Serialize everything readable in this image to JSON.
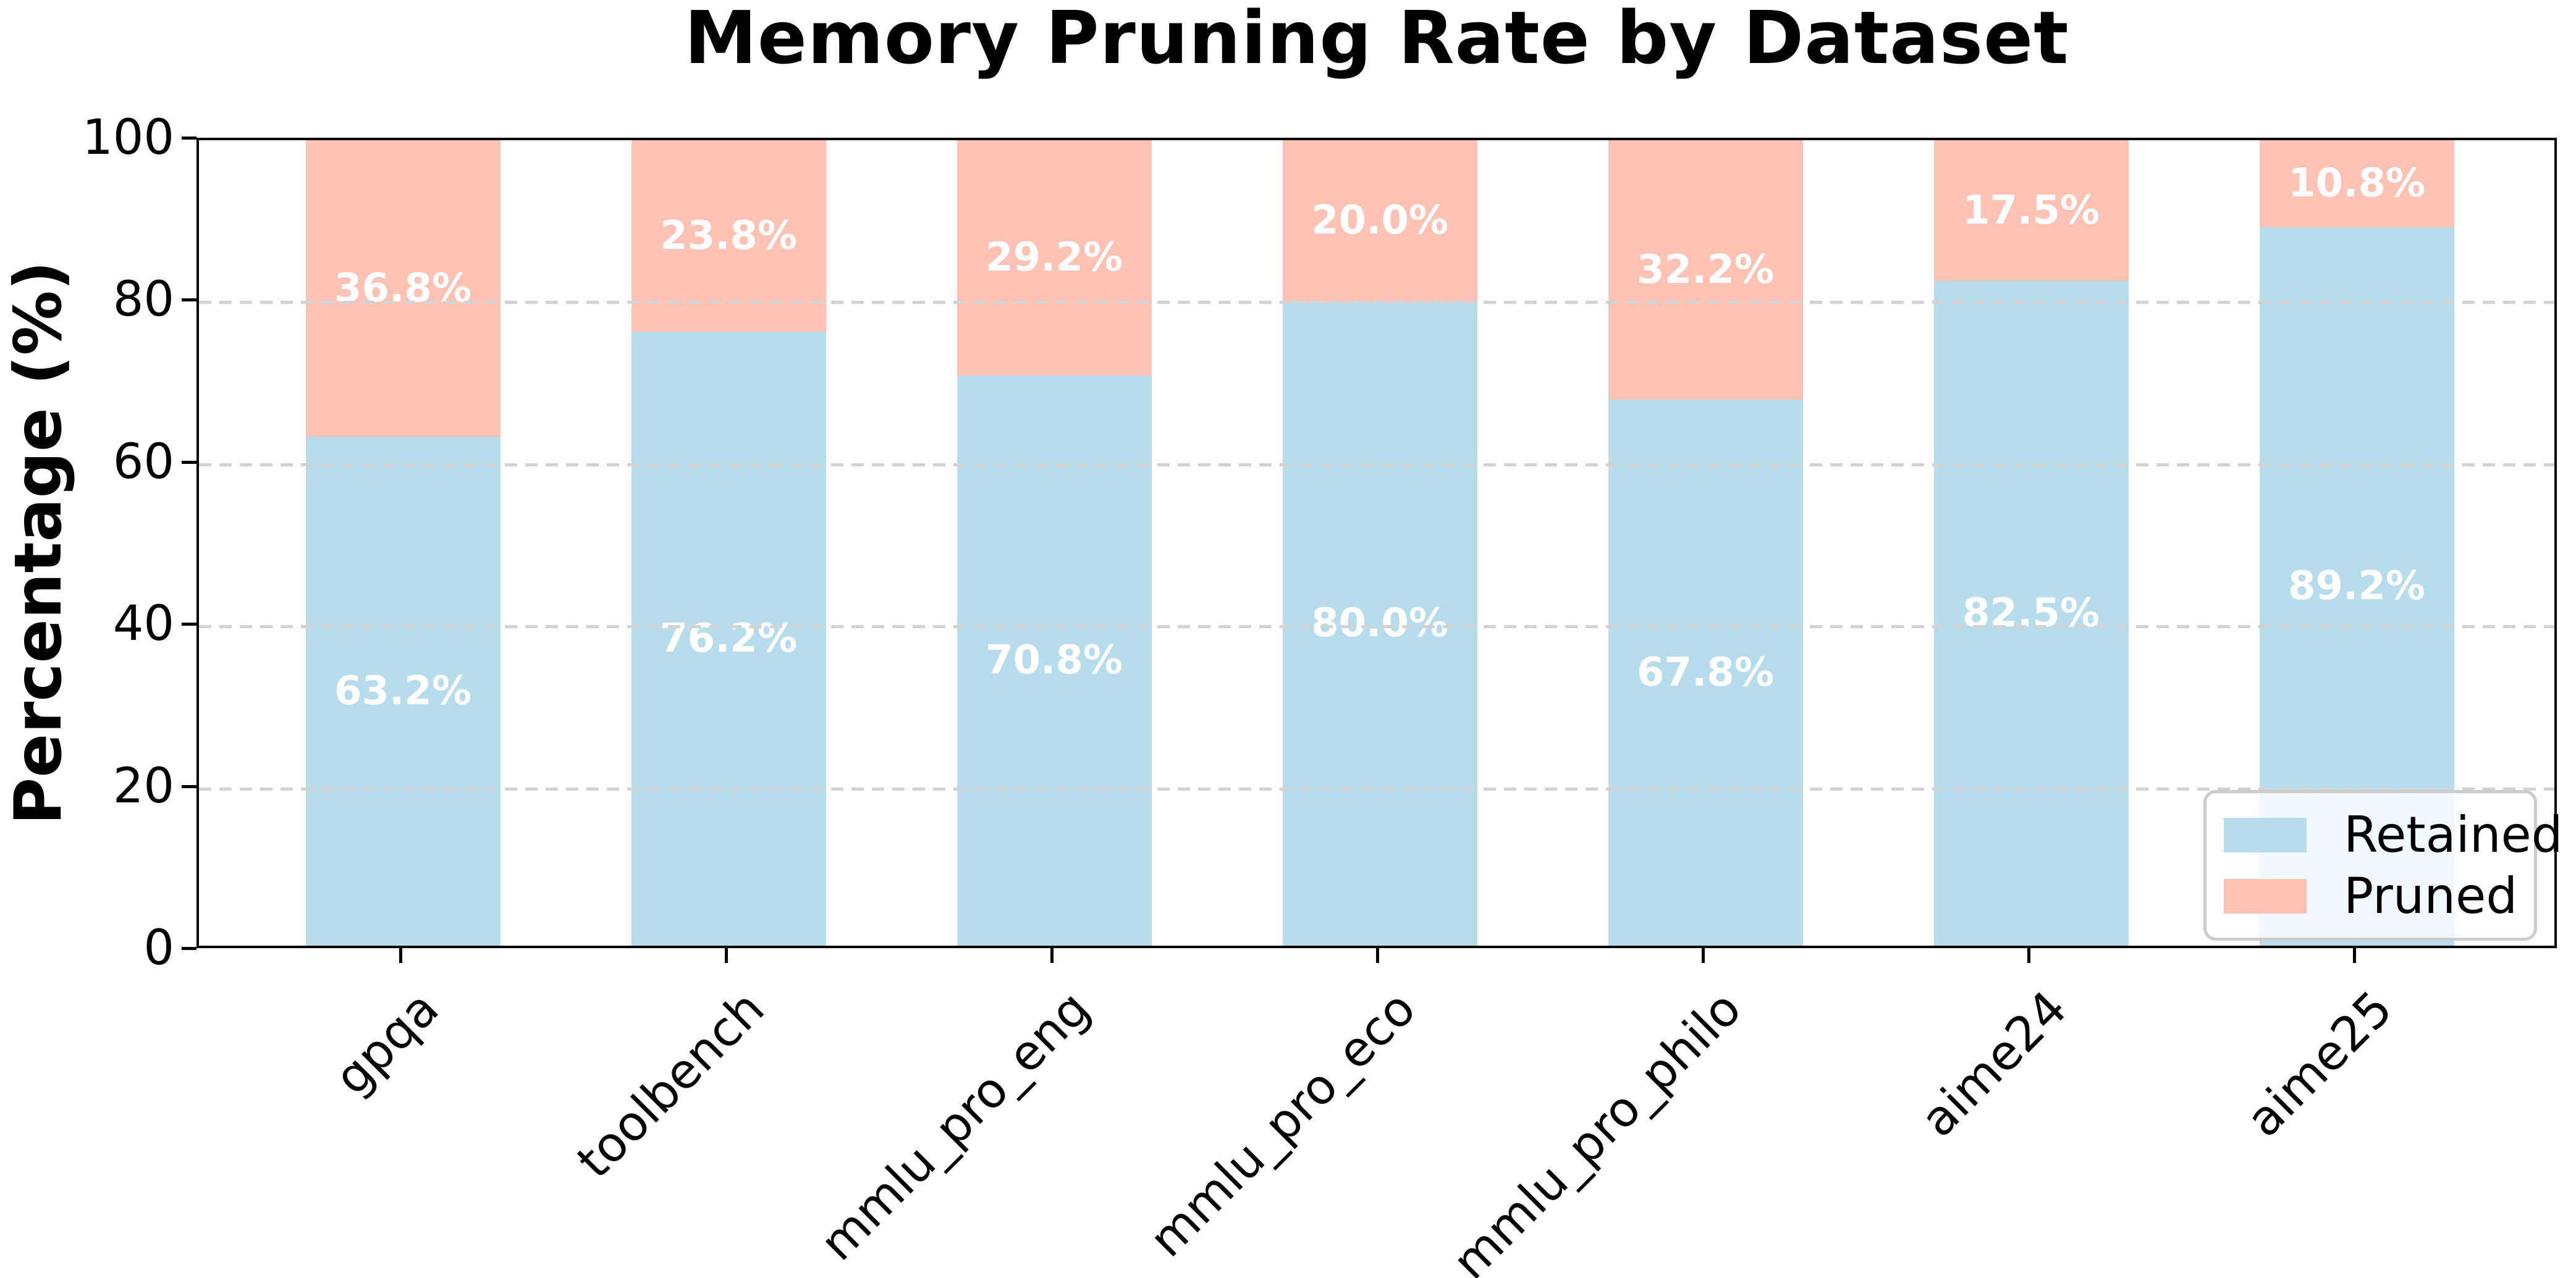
{
  "title": "Memory Pruning Rate by Dataset",
  "y_axis": {
    "label": "Percentage (%)",
    "ticks": [
      "0",
      "20",
      "40",
      "60",
      "80",
      "100"
    ]
  },
  "legend": {
    "position": "lower right",
    "entries": [
      {
        "label": "Retained",
        "color": "#b7dcec"
      },
      {
        "label": "Pruned",
        "color": "#fec2b5"
      }
    ]
  },
  "colors": {
    "retained": "#b7dcec",
    "pruned": "#fec2b5",
    "grid": "#d2d2d2",
    "axis": "#000000",
    "bar_label_text": "#ffffff"
  },
  "chart_data": {
    "type": "bar",
    "stacked": true,
    "title": "Memory Pruning Rate by Dataset",
    "xlabel": "",
    "ylabel": "Percentage (%)",
    "ylim": [
      0,
      100
    ],
    "grid": "horizontal-dashed",
    "legend_position": "lower right",
    "categories": [
      "gpqa",
      "toolbench",
      "mmlu_pro_eng",
      "mmlu_pro_eco",
      "mmlu_pro_philo",
      "aime24",
      "aime25"
    ],
    "series": [
      {
        "name": "Retained",
        "color": "#b7dcec",
        "values": [
          63.2,
          76.2,
          70.8,
          80.0,
          67.8,
          82.5,
          89.2
        ],
        "labels": [
          "63.2%",
          "76.2%",
          "70.8%",
          "80.0%",
          "67.8%",
          "82.5%",
          "89.2%"
        ]
      },
      {
        "name": "Pruned",
        "color": "#fec2b5",
        "values": [
          36.8,
          23.8,
          29.2,
          20.0,
          32.2,
          17.5,
          10.8
        ],
        "labels": [
          "36.8%",
          "23.8%",
          "29.2%",
          "20.0%",
          "32.2%",
          "17.5%",
          "10.8%"
        ]
      }
    ]
  }
}
